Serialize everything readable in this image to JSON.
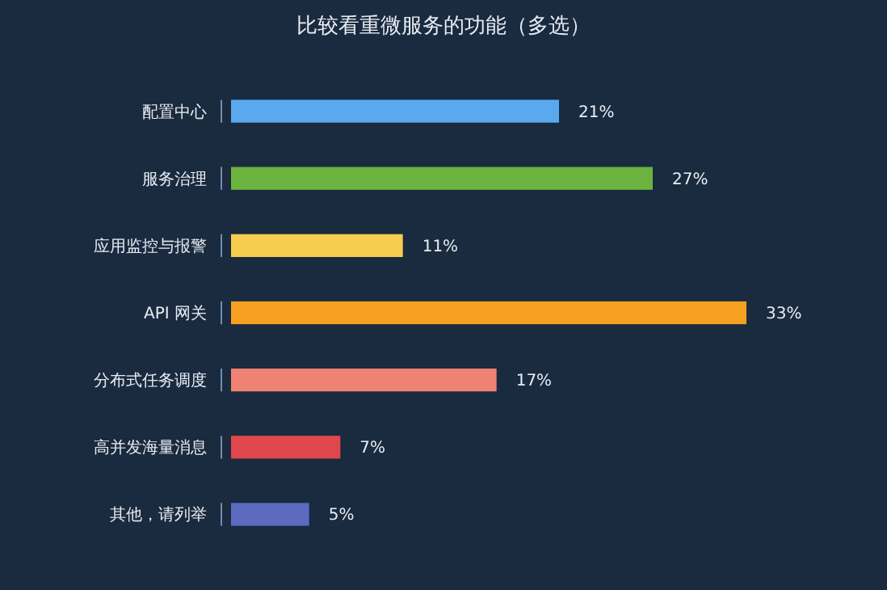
{
  "chart_data": {
    "type": "bar",
    "orientation": "horizontal",
    "title": "比较看重微服务的功能（多选）",
    "categories": [
      "配置中心",
      "服务治理",
      "应用监控与报警",
      "API 网关",
      "分布式任务调度",
      "高并发海量消息",
      "其他，请列举"
    ],
    "values": [
      21,
      27,
      11,
      33,
      17,
      7,
      5
    ],
    "colors": [
      "#5aa9ee",
      "#6ab33e",
      "#f7cd4f",
      "#f5a020",
      "#ef8373",
      "#e0474c",
      "#5c6bc0"
    ],
    "value_labels": [
      "21%",
      "27%",
      "11%",
      "33%",
      "17%",
      "7%",
      "5%"
    ]
  }
}
